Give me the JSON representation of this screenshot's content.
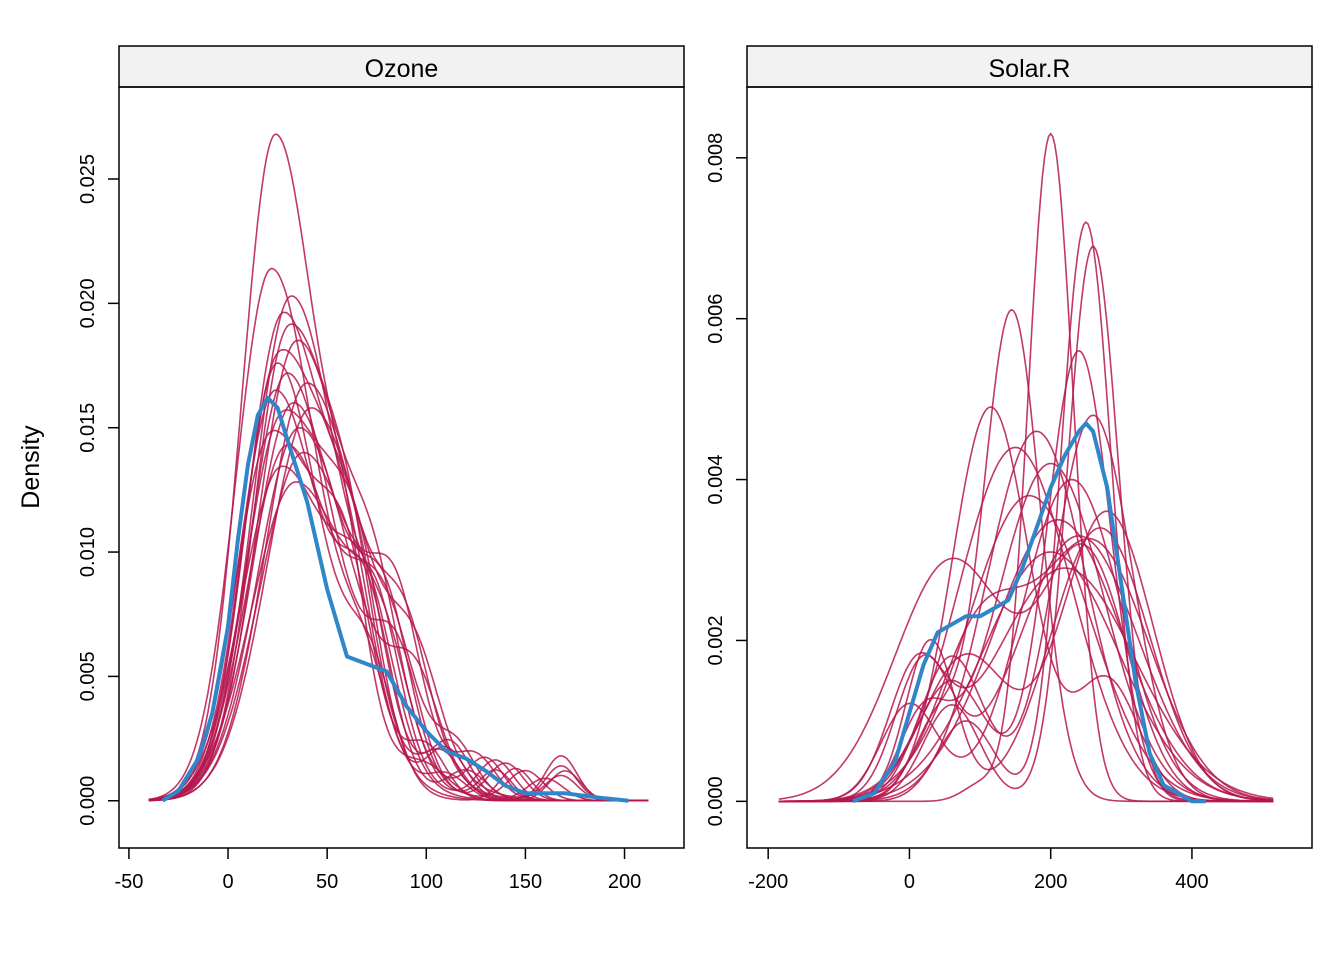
{
  "chart_data": {
    "type": "line",
    "ylabel": "Density",
    "colors": {
      "imputed": "#b5164f",
      "observed": "#2f86c9",
      "strip": "#f2f2f2"
    },
    "panels": [
      {
        "title": "Ozone",
        "xlim": [
          -55,
          230
        ],
        "ylim": [
          -0.0019,
          0.0287
        ],
        "xticks": [
          -50,
          0,
          50,
          100,
          150,
          200
        ],
        "yticks": [
          0.0,
          0.005,
          0.01,
          0.015,
          0.02,
          0.025
        ],
        "ytick_labels": [
          "0.000",
          "0.005",
          "0.010",
          "0.015",
          "0.020",
          "0.025"
        ],
        "observed": {
          "x": [
            -33,
            -25,
            -15,
            -8,
            0,
            5,
            10,
            15,
            20,
            25,
            30,
            40,
            50,
            60,
            70,
            80,
            90,
            100,
            110,
            120,
            130,
            140,
            150,
            160,
            170,
            180,
            190,
            202
          ],
          "y": [
            0.0,
            0.0004,
            0.0017,
            0.0035,
            0.007,
            0.0105,
            0.0135,
            0.0155,
            0.0162,
            0.0158,
            0.0145,
            0.012,
            0.0085,
            0.0058,
            0.0055,
            0.0052,
            0.0038,
            0.0028,
            0.002,
            0.0017,
            0.0012,
            0.0006,
            0.0003,
            0.0003,
            0.0003,
            0.0002,
            0.0001,
            0.0
          ]
        },
        "imputed_peaks": [
          {
            "mode": 24,
            "peak": 0.0268,
            "sd": 17,
            "bumps": [
              [
                60,
                0.004,
                10
              ],
              [
                100,
                0.0012,
                12
              ]
            ]
          },
          {
            "mode": 22,
            "peak": 0.0214,
            "sd": 18,
            "bumps": [
              [
                70,
                0.003,
                12
              ],
              [
                110,
                0.001,
                10
              ]
            ]
          },
          {
            "mode": 32,
            "peak": 0.0203,
            "sd": 19,
            "bumps": [
              [
                80,
                0.0035,
                12
              ],
              [
                135,
                0.0012,
                8
              ]
            ]
          },
          {
            "mode": 28,
            "peak": 0.0196,
            "sd": 18,
            "bumps": [
              [
                65,
                0.005,
                12
              ],
              [
                170,
                0.0012,
                8
              ]
            ]
          },
          {
            "mode": 35,
            "peak": 0.0185,
            "sd": 20,
            "bumps": [
              [
                75,
                0.004,
                12
              ],
              [
                130,
                0.0016,
                9
              ]
            ]
          },
          {
            "mode": 26,
            "peak": 0.0178,
            "sd": 18,
            "bumps": [
              [
                60,
                0.0055,
                14
              ],
              [
                110,
                0.002,
                10
              ]
            ]
          },
          {
            "mode": 30,
            "peak": 0.0172,
            "sd": 19,
            "bumps": [
              [
                85,
                0.0045,
                12
              ],
              [
                140,
                0.0015,
                9
              ]
            ]
          },
          {
            "mode": 40,
            "peak": 0.0168,
            "sd": 21,
            "bumps": [
              [
                90,
                0.004,
                12
              ],
              [
                168,
                0.0018,
                8
              ]
            ]
          },
          {
            "mode": 24,
            "peak": 0.0165,
            "sd": 18,
            "bumps": [
              [
                70,
                0.006,
                13
              ],
              [
                120,
                0.0012,
                10
              ]
            ]
          },
          {
            "mode": 33,
            "peak": 0.016,
            "sd": 20,
            "bumps": [
              [
                80,
                0.005,
                12
              ],
              [
                150,
                0.0012,
                9
              ]
            ]
          },
          {
            "mode": 28,
            "peak": 0.0155,
            "sd": 19,
            "bumps": [
              [
                65,
                0.006,
                14
              ],
              [
                112,
                0.0022,
                10
              ]
            ]
          },
          {
            "mode": 36,
            "peak": 0.015,
            "sd": 21,
            "bumps": [
              [
                95,
                0.0035,
                12
              ],
              [
                168,
                0.0014,
                8
              ]
            ]
          },
          {
            "mode": 22,
            "peak": 0.0147,
            "sd": 18,
            "bumps": [
              [
                60,
                0.0065,
                14
              ],
              [
                100,
                0.002,
                10
              ]
            ]
          },
          {
            "mode": 30,
            "peak": 0.0143,
            "sd": 20,
            "bumps": [
              [
                75,
                0.005,
                12
              ],
              [
                135,
                0.0016,
                9
              ]
            ]
          },
          {
            "mode": 38,
            "peak": 0.014,
            "sd": 22,
            "bumps": [
              [
                85,
                0.005,
                12
              ],
              [
                125,
                0.0015,
                10
              ]
            ]
          },
          {
            "mode": 27,
            "peak": 0.0134,
            "sd": 20,
            "bumps": [
              [
                70,
                0.0055,
                14
              ],
              [
                160,
                0.0009,
                9
              ]
            ]
          },
          {
            "mode": 34,
            "peak": 0.0128,
            "sd": 22,
            "bumps": [
              [
                80,
                0.0045,
                14
              ],
              [
                115,
                0.0018,
                10
              ]
            ]
          },
          {
            "mode": 25,
            "peak": 0.0176,
            "sd": 17,
            "bumps": [
              [
                72,
                0.0038,
                12
              ],
              [
                145,
                0.0013,
                8
              ]
            ]
          },
          {
            "mode": 31,
            "peak": 0.019,
            "sd": 18,
            "bumps": [
              [
                62,
                0.0042,
                12
              ],
              [
                108,
                0.0017,
                10
              ]
            ]
          },
          {
            "mode": 42,
            "peak": 0.0158,
            "sd": 22,
            "bumps": [
              [
                95,
                0.0032,
                12
              ],
              [
                168,
                0.001,
                8
              ]
            ]
          }
        ]
      },
      {
        "title": "Solar.R",
        "xlim": [
          -230,
          570
        ],
        "ylim": [
          -0.00058,
          0.00888
        ],
        "xticks": [
          -200,
          0,
          200,
          400
        ],
        "yticks": [
          0.0,
          0.002,
          0.004,
          0.006,
          0.008
        ],
        "ytick_labels": [
          "0.000",
          "0.002",
          "0.004",
          "0.006",
          "0.008"
        ],
        "observed": {
          "x": [
            -80,
            -50,
            -20,
            0,
            20,
            40,
            60,
            80,
            100,
            120,
            140,
            160,
            180,
            200,
            220,
            240,
            250,
            260,
            280,
            300,
            320,
            340,
            360,
            380,
            400,
            420
          ],
          "y": [
            0.0,
            0.0001,
            0.0005,
            0.0011,
            0.0017,
            0.0021,
            0.0022,
            0.0023,
            0.0023,
            0.0024,
            0.0025,
            0.0029,
            0.0034,
            0.0039,
            0.0043,
            0.0046,
            0.0047,
            0.0046,
            0.0039,
            0.0027,
            0.0015,
            0.0006,
            0.0002,
            0.0001,
            0.0,
            0.0
          ]
        },
        "imputed_curves": [
          {
            "comps": [
              [
                200,
                0.0083,
                32
              ],
              [
                100,
                0.0002,
                25
              ]
            ]
          },
          {
            "comps": [
              [
                250,
                0.0072,
                35
              ],
              [
                80,
                0.001,
                40
              ]
            ]
          },
          {
            "comps": [
              [
                260,
                0.0069,
                36
              ],
              [
                60,
                0.0012,
                40
              ]
            ]
          },
          {
            "comps": [
              [
                145,
                0.0061,
                40
              ],
              [
                40,
                0.001,
                35
              ]
            ]
          },
          {
            "comps": [
              [
                240,
                0.0056,
                45
              ],
              [
                60,
                0.0015,
                50
              ]
            ]
          },
          {
            "comps": [
              [
                260,
                0.0048,
                55
              ],
              [
                60,
                0.0018,
                45
              ]
            ]
          },
          {
            "comps": [
              [
                115,
                0.0049,
                55
              ],
              [
                280,
                0.0015,
                45
              ]
            ]
          },
          {
            "comps": [
              [
                180,
                0.0046,
                70
              ]
            ]
          },
          {
            "comps": [
              [
                150,
                0.0044,
                80
              ]
            ]
          },
          {
            "comps": [
              [
                200,
                0.0042,
                75
              ],
              [
                20,
                0.001,
                35
              ]
            ]
          },
          {
            "comps": [
              [
                230,
                0.004,
                70
              ],
              [
                0,
                0.0012,
                40
              ]
            ]
          },
          {
            "comps": [
              [
                170,
                0.0038,
                85
              ]
            ]
          },
          {
            "comps": [
              [
                60,
                0.003,
                80
              ],
              [
                250,
                0.003,
                60
              ]
            ]
          },
          {
            "comps": [
              [
                280,
                0.0036,
                65
              ],
              [
                80,
                0.0018,
                60
              ]
            ]
          },
          {
            "comps": [
              [
                210,
                0.0035,
                90
              ]
            ]
          },
          {
            "comps": [
              [
                240,
                0.0033,
                85
              ],
              [
                20,
                0.0017,
                40
              ]
            ]
          },
          {
            "comps": [
              [
                270,
                0.0034,
                70
              ],
              [
                30,
                0.002,
                35
              ]
            ]
          },
          {
            "comps": [
              [
                200,
                0.0031,
                95
              ]
            ]
          },
          {
            "comps": [
              [
                220,
                0.0029,
                100
              ],
              [
                10,
                0.0015,
                40
              ]
            ]
          },
          {
            "comps": [
              [
                260,
                0.0032,
                80
              ],
              [
                100,
                0.002,
                60
              ]
            ]
          }
        ]
      }
    ]
  }
}
